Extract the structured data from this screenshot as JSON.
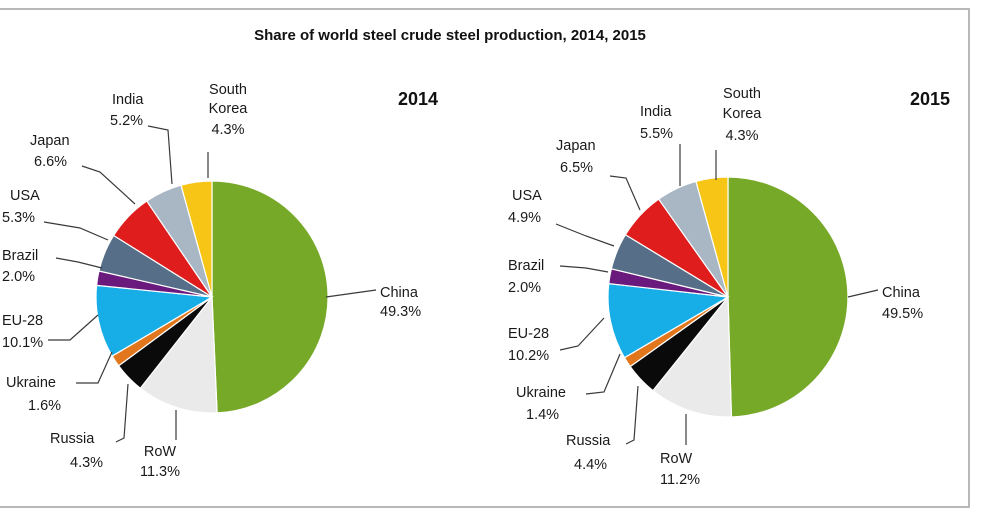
{
  "title": "Share of world steel crude steel production, 2014, 2015",
  "chart_data": [
    {
      "type": "pie",
      "title": "2014",
      "slices": [
        {
          "label": "China",
          "value": 49.3,
          "display": "49.3%",
          "color": "#77a929"
        },
        {
          "label": "RoW",
          "value": 11.3,
          "display": "11.3%",
          "color": "#eaeaea"
        },
        {
          "label": "Russia",
          "value": 4.3,
          "display": "4.3%",
          "color": "#0a0a0a"
        },
        {
          "label": "Ukraine",
          "value": 1.6,
          "display": "1.6%",
          "color": "#e2761c"
        },
        {
          "label": "EU-28",
          "value": 10.1,
          "display": "10.1%",
          "color": "#17aee8"
        },
        {
          "label": "Brazil",
          "value": 2.0,
          "display": "2.0%",
          "color": "#6a1a7c"
        },
        {
          "label": "USA",
          "value": 5.3,
          "display": "5.3%",
          "color": "#566e87"
        },
        {
          "label": "Japan",
          "value": 6.6,
          "display": "6.6%",
          "color": "#df1d1d"
        },
        {
          "label": "India",
          "value": 5.2,
          "display": "5.2%",
          "color": "#a9b6c4"
        },
        {
          "label": "South Korea",
          "value": 4.3,
          "display": "4.3%",
          "color": "#f7c515"
        }
      ]
    },
    {
      "type": "pie",
      "title": "2015",
      "slices": [
        {
          "label": "China",
          "value": 49.5,
          "display": "49.5%",
          "color": "#77a929"
        },
        {
          "label": "RoW",
          "value": 11.2,
          "display": "11.2%",
          "color": "#eaeaea"
        },
        {
          "label": "Russia",
          "value": 4.4,
          "display": "4.4%",
          "color": "#0a0a0a"
        },
        {
          "label": "Ukraine",
          "value": 1.4,
          "display": "1.4%",
          "color": "#e2761c"
        },
        {
          "label": "EU-28",
          "value": 10.2,
          "display": "10.2%",
          "color": "#17aee8"
        },
        {
          "label": "Brazil",
          "value": 2.0,
          "display": "2.0%",
          "color": "#6a1a7c"
        },
        {
          "label": "USA",
          "value": 4.9,
          "display": "4.9%",
          "color": "#566e87"
        },
        {
          "label": "Japan",
          "value": 6.5,
          "display": "6.5%",
          "color": "#df1d1d"
        },
        {
          "label": "India",
          "value": 5.5,
          "display": "5.5%",
          "color": "#a9b6c4"
        },
        {
          "label": "South Korea",
          "value": 4.3,
          "display": "4.3%",
          "color": "#f7c515"
        }
      ]
    }
  ]
}
